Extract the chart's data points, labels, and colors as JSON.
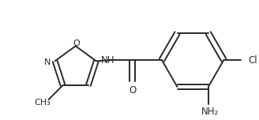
{
  "bg_color": "#ffffff",
  "line_color": "#2a2a2a",
  "text_color": "#2a2a2a",
  "line_width": 1.4,
  "font_size": 8.5,
  "figsize": [
    3.28,
    1.52
  ],
  "dpi": 100,
  "nh2_label": "NH₂",
  "cl_label": "Cl",
  "o_label": "O",
  "nh_label": "NH",
  "n_label": "N",
  "o_ring_label": "O",
  "methyl_label": "CH₃"
}
